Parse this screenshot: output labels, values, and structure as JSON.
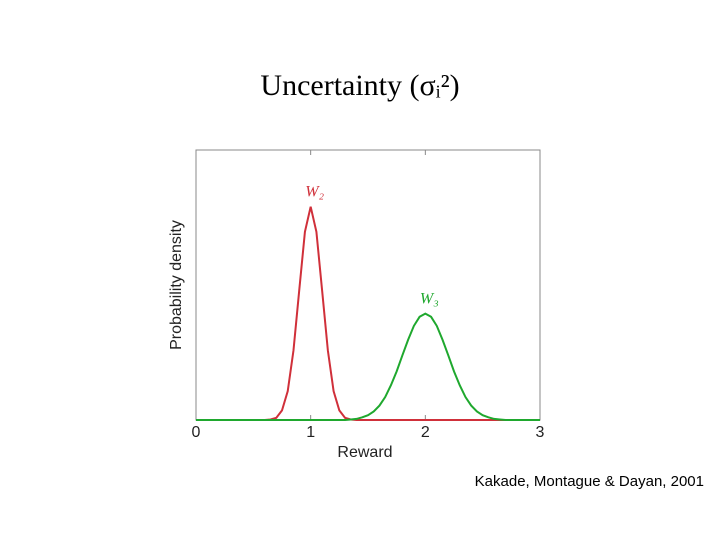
{
  "chart_data": {
    "type": "line",
    "title": "Uncertainty (σᵢ²)",
    "x_label": "Reward",
    "y_label": "Probability density",
    "source": "Kakade, Montague & Dayan, 2001",
    "x": [
      0,
      0.05,
      0.1,
      0.15,
      0.2,
      0.25,
      0.3,
      0.35,
      0.4,
      0.45,
      0.5,
      0.55,
      0.6,
      0.65,
      0.7,
      0.75,
      0.8,
      0.85,
      0.9,
      0.95,
      1,
      1.05,
      1.1,
      1.15,
      1.2,
      1.25,
      1.3,
      1.35,
      1.4,
      1.45,
      1.5,
      1.55,
      1.6,
      1.65,
      1.7,
      1.75,
      1.8,
      1.85,
      1.9,
      1.95,
      2,
      2.05,
      2.1,
      2.15,
      2.2,
      2.25,
      2.3,
      2.35,
      2.4,
      2.45,
      2.5,
      2.55,
      2.6,
      2.65,
      2.7,
      2.75,
      2.8,
      2.85,
      2.9,
      2.95,
      3
    ],
    "series": [
      {
        "name": "W₂",
        "color": "#d0303a",
        "values": [
          0,
          0,
          0,
          0,
          0,
          0,
          0,
          0,
          0,
          0,
          0,
          0,
          0,
          0.01,
          0.04,
          0.18,
          0.54,
          1.3,
          2.42,
          3.52,
          3.99,
          3.52,
          2.42,
          1.3,
          0.54,
          0.18,
          0.04,
          0.01,
          0,
          0,
          0,
          0,
          0,
          0,
          0,
          0,
          0,
          0,
          0,
          0,
          0,
          0,
          0,
          0,
          0,
          0,
          0,
          0,
          0,
          0,
          0,
          0,
          0,
          0,
          0,
          0,
          0,
          0,
          0,
          0,
          0
        ]
      },
      {
        "name": "W₃",
        "color": "#1fa82e",
        "values": [
          0,
          0,
          0,
          0,
          0,
          0,
          0,
          0,
          0,
          0,
          0,
          0,
          0,
          0,
          0,
          0,
          0,
          0,
          0,
          0,
          0,
          0,
          0,
          0,
          0,
          0,
          0,
          0.01,
          0.02,
          0.05,
          0.09,
          0.16,
          0.27,
          0.43,
          0.65,
          0.91,
          1.21,
          1.5,
          1.76,
          1.93,
          1.99,
          1.93,
          1.76,
          1.5,
          1.21,
          0.91,
          0.65,
          0.43,
          0.27,
          0.16,
          0.09,
          0.05,
          0.02,
          0.01,
          0,
          0,
          0,
          0,
          0,
          0,
          0
        ]
      }
    ],
    "xlim": [
      0,
      3
    ],
    "xticks": [
      0,
      1,
      2,
      3
    ],
    "ylim": [
      0,
      5.05
    ]
  }
}
